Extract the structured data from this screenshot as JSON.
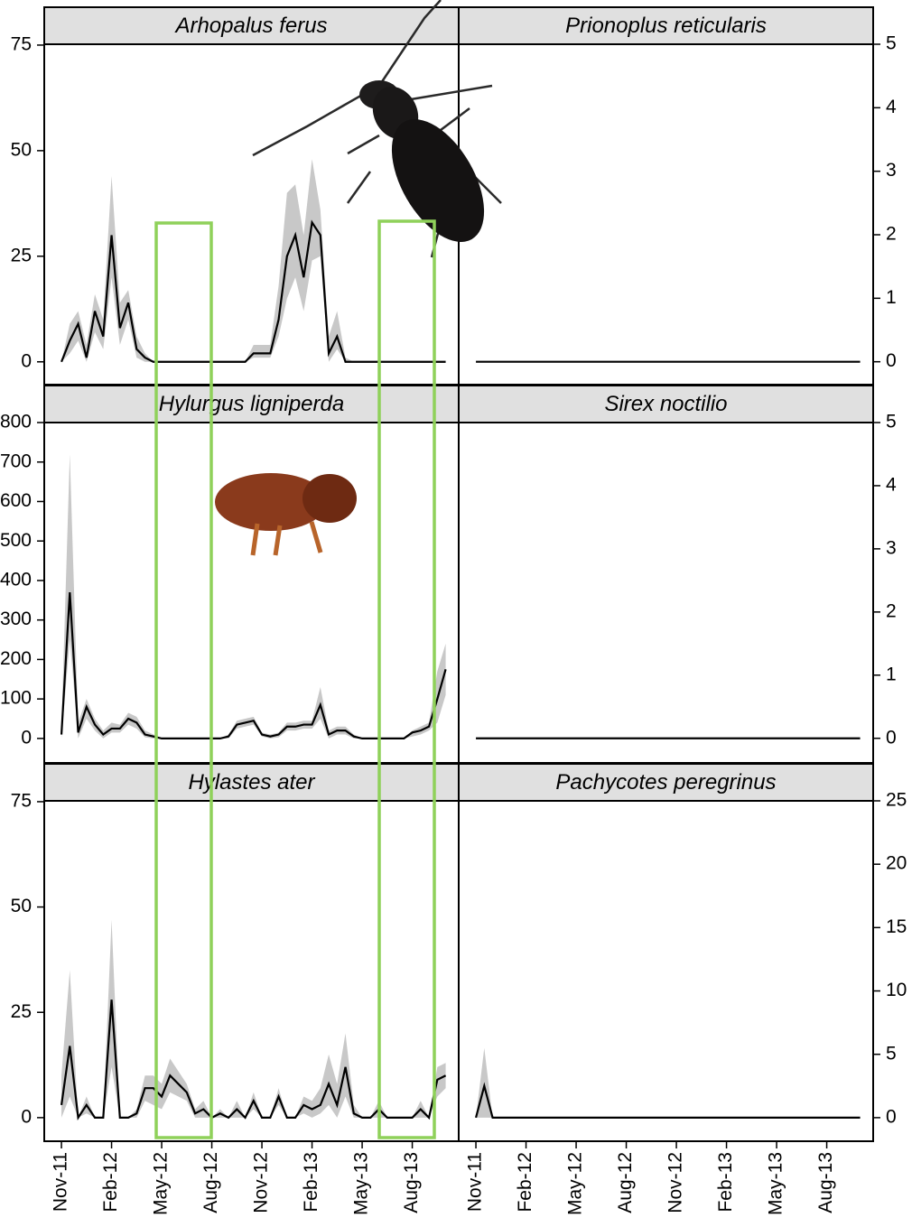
{
  "chart_data": [
    {
      "type": "line",
      "title": "Arhopalus ferus",
      "yaxis": "left",
      "color": "#000000",
      "band_color": "#c8c8c8",
      "xlim": [
        -1.03,
        23.78
      ],
      "ylim": [
        -5.4,
        75.2
      ],
      "yticks": [
        0,
        25,
        50,
        75
      ],
      "x": [
        0,
        0.5,
        1,
        1.5,
        2,
        2.5,
        3,
        3.5,
        4,
        4.5,
        5,
        5.5,
        6,
        6.5,
        7,
        7.5,
        8,
        8.5,
        9,
        9.5,
        10,
        10.5,
        11,
        11.5,
        12,
        12.5,
        13,
        13.5,
        14,
        14.5,
        15,
        15.5,
        16,
        16.5,
        17,
        17.5,
        18,
        18.5,
        19,
        19.5,
        20,
        20.5,
        21,
        21.5,
        22,
        22.5,
        23
      ],
      "values": [
        0,
        5,
        9,
        1,
        12,
        6,
        30,
        8,
        14,
        3,
        1,
        0,
        0,
        0,
        0,
        0,
        0,
        0,
        0,
        0,
        0,
        0,
        0,
        2,
        2,
        2,
        10,
        25,
        30,
        20,
        33,
        30,
        2,
        6,
        0,
        0,
        0,
        0,
        0,
        0,
        0,
        0,
        0,
        0,
        0,
        0,
        0
      ],
      "upper": [
        0,
        9,
        12,
        4,
        16,
        10,
        44,
        14,
        17,
        6,
        2,
        0,
        0,
        0,
        0,
        0,
        0,
        0,
        0,
        0,
        0,
        0,
        0,
        4,
        4,
        4,
        18,
        40,
        42,
        30,
        48,
        36,
        6,
        12,
        1,
        0,
        0,
        0,
        0,
        0,
        0,
        0,
        0,
        0,
        0,
        0,
        0
      ],
      "lower": [
        0,
        2,
        5,
        0,
        7,
        3,
        20,
        4,
        10,
        1,
        0,
        0,
        0,
        0,
        0,
        0,
        0,
        0,
        0,
        0,
        0,
        0,
        0,
        1,
        1,
        1,
        6,
        15,
        20,
        12,
        24,
        25,
        0,
        3,
        0,
        0,
        0,
        0,
        0,
        0,
        0,
        0,
        0,
        0,
        0,
        0,
        0
      ]
    },
    {
      "type": "line",
      "title": "Prionoplus reticularis",
      "yaxis": "right",
      "color": "#000000",
      "xlim": [
        -1.03,
        23.78
      ],
      "ylim": [
        -0.36,
        5
      ],
      "yticks": [
        0,
        1,
        2,
        3,
        4,
        5
      ],
      "x": [
        0,
        0.5,
        1,
        1.5,
        2,
        2.5,
        3,
        3.5,
        4,
        4.5,
        5,
        5.5,
        6,
        6.5,
        7,
        7.5,
        8,
        8.5,
        9,
        9.5,
        10,
        10.5,
        11,
        11.5,
        12,
        12.5,
        13,
        13.5,
        14,
        14.5,
        15,
        15.5,
        16,
        16.5,
        17,
        17.5,
        18,
        18.5,
        19,
        19.5,
        20,
        20.5,
        21,
        21.5,
        22,
        22.5,
        23
      ],
      "values": [
        0,
        0,
        0,
        0,
        0,
        0,
        0,
        0,
        0,
        0,
        0,
        0,
        0,
        0,
        0,
        0,
        0,
        0,
        0,
        0,
        0,
        0,
        0,
        0,
        0,
        0,
        0,
        0,
        0,
        0,
        0,
        0,
        0,
        0,
        0,
        0,
        0,
        0,
        0,
        0,
        0,
        0,
        0,
        0,
        0,
        0,
        0
      ]
    },
    {
      "type": "line",
      "title": "Hylurgus ligniperda",
      "yaxis": "left",
      "color": "#000000",
      "band_color": "#c8c8c8",
      "xlim": [
        -1.03,
        23.78
      ],
      "ylim": [
        -62,
        800
      ],
      "yticks": [
        0,
        100,
        200,
        300,
        400,
        500,
        600,
        700,
        800
      ],
      "x": [
        0,
        0.5,
        1,
        1.5,
        2,
        2.5,
        3,
        3.5,
        4,
        4.5,
        5,
        5.5,
        6,
        6.5,
        7,
        7.5,
        8,
        8.5,
        9,
        9.5,
        10,
        10.5,
        11,
        11.5,
        12,
        12.5,
        13,
        13.5,
        14,
        14.5,
        15,
        15.5,
        16,
        16.5,
        17,
        17.5,
        18,
        18.5,
        19,
        19.5,
        20,
        20.5,
        21,
        21.5,
        22,
        22.5,
        23
      ],
      "values": [
        10,
        370,
        15,
        80,
        35,
        10,
        25,
        25,
        50,
        40,
        10,
        5,
        0,
        0,
        0,
        0,
        0,
        0,
        0,
        0,
        5,
        35,
        40,
        45,
        10,
        5,
        10,
        30,
        30,
        35,
        35,
        85,
        10,
        20,
        20,
        5,
        0,
        0,
        0,
        0,
        0,
        0,
        15,
        20,
        30,
        100,
        175
      ],
      "upper": [
        30,
        720,
        40,
        100,
        50,
        20,
        40,
        35,
        65,
        55,
        20,
        10,
        0,
        0,
        0,
        0,
        0,
        0,
        0,
        0,
        10,
        45,
        50,
        55,
        15,
        10,
        15,
        40,
        40,
        45,
        45,
        130,
        20,
        30,
        30,
        10,
        0,
        0,
        0,
        0,
        0,
        0,
        20,
        30,
        40,
        170,
        240
      ],
      "lower": [
        0,
        250,
        0,
        50,
        20,
        0,
        15,
        15,
        35,
        25,
        3,
        0,
        0,
        0,
        0,
        0,
        0,
        0,
        0,
        0,
        0,
        25,
        30,
        35,
        5,
        0,
        3,
        20,
        20,
        25,
        25,
        50,
        0,
        10,
        10,
        0,
        0,
        0,
        0,
        0,
        0,
        0,
        5,
        10,
        20,
        40,
        110
      ]
    },
    {
      "type": "line",
      "title": "Sirex noctilio",
      "yaxis": "right",
      "color": "#000000",
      "xlim": [
        -1.03,
        23.78
      ],
      "ylim": [
        -0.39,
        5
      ],
      "yticks": [
        0,
        1,
        2,
        3,
        4,
        5
      ],
      "x": [
        0,
        0.5,
        1,
        1.5,
        2,
        2.5,
        3,
        3.5,
        4,
        4.5,
        5,
        5.5,
        6,
        6.5,
        7,
        7.5,
        8,
        8.5,
        9,
        9.5,
        10,
        10.5,
        11,
        11.5,
        12,
        12.5,
        13,
        13.5,
        14,
        14.5,
        15,
        15.5,
        16,
        16.5,
        17,
        17.5,
        18,
        18.5,
        19,
        19.5,
        20,
        20.5,
        21,
        21.5,
        22,
        22.5,
        23
      ],
      "values": [
        0,
        0,
        0,
        0,
        0,
        0,
        0,
        0,
        0,
        0,
        0,
        0,
        0,
        0,
        0,
        0,
        0,
        0,
        0,
        0,
        0,
        0,
        0,
        0,
        0,
        0,
        0,
        0,
        0,
        0,
        0,
        0,
        0,
        0,
        0,
        0,
        0,
        0,
        0,
        0,
        0,
        0,
        0,
        0,
        0,
        0,
        0
      ]
    },
    {
      "type": "line",
      "title": "Hylastes ater",
      "yaxis": "left",
      "color": "#000000",
      "band_color": "#c8c8c8",
      "xlim": [
        -1.03,
        23.78
      ],
      "ylim": [
        -5.6,
        75.2
      ],
      "yticks": [
        0,
        25,
        50,
        75
      ],
      "xticks": [
        {
          "value": 0,
          "label": "Nov-11"
        },
        {
          "value": 3,
          "label": "Feb-12"
        },
        {
          "value": 6,
          "label": "May-12"
        },
        {
          "value": 9,
          "label": "Aug-12"
        },
        {
          "value": 12,
          "label": "Nov-12"
        },
        {
          "value": 15,
          "label": "Feb-13"
        },
        {
          "value": 18,
          "label": "May-13"
        },
        {
          "value": 21,
          "label": "Aug-13"
        }
      ],
      "x": [
        0,
        0.5,
        1,
        1.5,
        2,
        2.5,
        3,
        3.5,
        4,
        4.5,
        5,
        5.5,
        6,
        6.5,
        7,
        7.5,
        8,
        8.5,
        9,
        9.5,
        10,
        10.5,
        11,
        11.5,
        12,
        12.5,
        13,
        13.5,
        14,
        14.5,
        15,
        15.5,
        16,
        16.5,
        17,
        17.5,
        18,
        18.5,
        19,
        19.5,
        20,
        20.5,
        21,
        21.5,
        22,
        22.5,
        23
      ],
      "values": [
        3,
        17,
        0,
        3,
        0,
        0,
        28,
        0,
        0,
        1,
        7,
        7,
        5,
        10,
        8,
        6,
        1,
        2,
        0,
        1,
        0,
        2,
        0,
        4,
        0,
        0,
        5,
        0,
        0,
        3,
        2,
        3,
        8,
        3,
        12,
        1,
        0,
        0,
        2,
        0,
        0,
        0,
        0,
        2,
        0,
        9,
        10
      ],
      "upper": [
        10,
        35,
        0,
        5,
        0,
        0,
        47,
        0,
        0,
        2,
        10,
        10,
        8,
        14,
        11,
        8,
        2,
        4,
        0,
        2,
        0,
        4,
        0,
        6,
        0,
        0,
        7,
        0,
        0,
        5,
        4,
        7,
        15,
        8,
        20,
        3,
        0,
        0,
        4,
        0,
        0,
        0,
        0,
        4,
        0,
        12,
        13
      ],
      "lower": [
        0,
        5,
        0,
        1,
        0,
        0,
        12,
        0,
        0,
        0,
        4,
        3,
        2,
        6,
        5,
        4,
        0,
        0,
        0,
        0,
        0,
        0,
        0,
        2,
        0,
        0,
        3,
        0,
        0,
        1,
        0,
        1,
        3,
        0,
        5,
        0,
        0,
        0,
        0,
        0,
        0,
        0,
        0,
        0,
        0,
        5,
        7
      ]
    },
    {
      "type": "line",
      "title": "Pachycotes peregrinus",
      "yaxis": "right",
      "color": "#000000",
      "band_color": "#c8c8c8",
      "xlim": [
        -1.03,
        23.78
      ],
      "ylim": [
        -1.86,
        25
      ],
      "yticks": [
        0,
        5,
        10,
        15,
        20,
        25
      ],
      "xticks": [
        {
          "value": 0,
          "label": "Nov-11"
        },
        {
          "value": 3,
          "label": "Feb-12"
        },
        {
          "value": 6,
          "label": "May-12"
        },
        {
          "value": 9,
          "label": "Aug-12"
        },
        {
          "value": 12,
          "label": "Nov-12"
        },
        {
          "value": 15,
          "label": "Feb-13"
        },
        {
          "value": 18,
          "label": "May-13"
        },
        {
          "value": 21,
          "label": "Aug-13"
        }
      ],
      "x": [
        0,
        0.5,
        1,
        1.5,
        2,
        2.5,
        3,
        3.5,
        4,
        4.5,
        5,
        5.5,
        6,
        6.5,
        7,
        7.5,
        8,
        8.5,
        9,
        9.5,
        10,
        10.5,
        11,
        11.5,
        12,
        12.5,
        13,
        13.5,
        14,
        14.5,
        15,
        15.5,
        16,
        16.5,
        17,
        17.5,
        18,
        18.5,
        19,
        19.5,
        20,
        20.5,
        21,
        21.5,
        22,
        22.5,
        23
      ],
      "values": [
        0,
        2.5,
        0,
        0,
        0,
        0,
        0,
        0,
        0,
        0,
        0,
        0,
        0,
        0,
        0,
        0,
        0,
        0,
        0,
        0,
        0,
        0,
        0,
        0,
        0,
        0,
        0,
        0,
        0,
        0,
        0,
        0,
        0,
        0,
        0,
        0,
        0,
        0,
        0,
        0,
        0,
        0,
        0,
        0,
        0,
        0,
        0
      ],
      "upper": [
        0,
        5.5,
        0,
        0,
        0,
        0,
        0,
        0,
        0,
        0,
        0,
        0,
        0,
        0,
        0,
        0,
        0,
        0,
        0,
        0,
        0,
        0,
        0,
        0,
        0,
        0,
        0,
        0,
        0,
        0,
        0,
        0,
        0,
        0,
        0,
        0,
        0,
        0,
        0,
        0,
        0,
        0,
        0,
        0,
        0,
        0,
        0
      ],
      "lower": [
        0,
        0,
        0,
        0,
        0,
        0,
        0,
        0,
        0,
        0,
        0,
        0,
        0,
        0,
        0,
        0,
        0,
        0,
        0,
        0,
        0,
        0,
        0,
        0,
        0,
        0,
        0,
        0,
        0,
        0,
        0,
        0,
        0,
        0,
        0,
        0,
        0,
        0,
        0,
        0,
        0,
        0,
        0,
        0,
        0,
        0,
        0
      ]
    }
  ]
}
